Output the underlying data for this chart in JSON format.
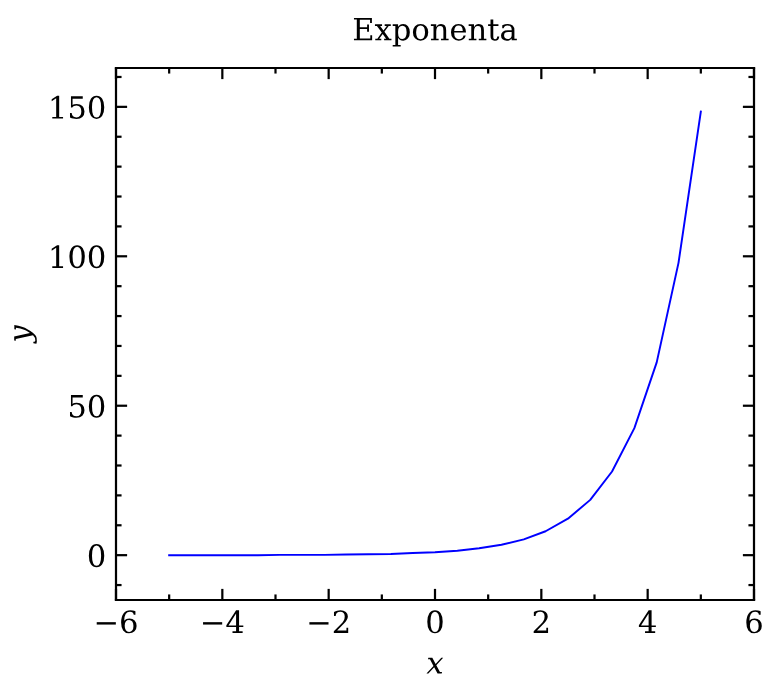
{
  "chart_data": {
    "type": "line",
    "title": "Exponenta",
    "xlabel": "x",
    "ylabel": "y",
    "x": [
      -5,
      -4.58,
      -4.17,
      -3.75,
      -3.33,
      -2.92,
      -2.5,
      -2.08,
      -1.67,
      -1.25,
      -0.83,
      -0.42,
      0,
      0.42,
      0.83,
      1.25,
      1.67,
      2.08,
      2.5,
      2.92,
      3.33,
      3.75,
      4.17,
      4.58,
      5
    ],
    "series": [
      {
        "color": "#0000ff",
        "values": [
          0,
          0,
          0,
          0,
          0,
          0.1,
          0.1,
          0.1,
          0.2,
          0.3,
          0.4,
          0.7,
          1,
          1.5,
          2.3,
          3.5,
          5.3,
          8.0,
          12.2,
          18.5,
          28.0,
          42.5,
          64.5,
          97.8,
          148.4
        ]
      }
    ],
    "xlim": [
      -6,
      6
    ],
    "ylim": [
      -15,
      163
    ],
    "xticks": [
      -6,
      {
        "value": -5,
        "label": null
      },
      -4,
      {
        "value": -3,
        "label": null
      },
      -2,
      {
        "value": -1,
        "label": null
      },
      0,
      {
        "value": 1,
        "label": null
      },
      2,
      {
        "value": 3,
        "label": null
      },
      4,
      {
        "value": 5,
        "label": null
      },
      6
    ],
    "yticks": [
      {
        "value": -10,
        "label": null
      },
      0,
      {
        "value": 10,
        "label": null
      },
      {
        "value": 20,
        "label": null
      },
      {
        "value": 30,
        "label": null
      },
      {
        "value": 40,
        "label": null
      },
      50,
      {
        "value": 60,
        "label": null
      },
      {
        "value": 70,
        "label": null
      },
      {
        "value": 80,
        "label": null
      },
      {
        "value": 90,
        "label": null
      },
      100,
      {
        "value": 110,
        "label": null
      },
      {
        "value": 120,
        "label": null
      },
      {
        "value": 130,
        "label": null
      },
      {
        "value": 140,
        "label": null
      },
      150,
      {
        "value": 160,
        "label": null
      }
    ],
    "grid": false,
    "legend": false,
    "marker": "none",
    "line_style": "solid"
  }
}
